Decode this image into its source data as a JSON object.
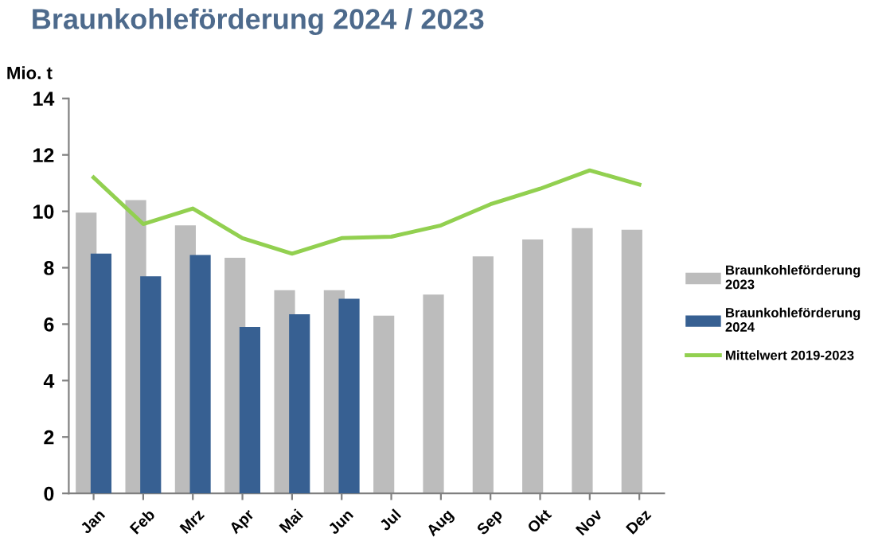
{
  "chart_data": {
    "type": "bar",
    "title": "Braunkohleförderung 2024 / 2023",
    "ylabel": "Mio. t",
    "categories": [
      "Jan",
      "Feb",
      "Mrz",
      "Apr",
      "Mai",
      "Jun",
      "Jul",
      "Aug",
      "Sep",
      "Okt",
      "Nov",
      "Dez"
    ],
    "series": [
      {
        "name": "Braunkohleförderung 2023",
        "color": "#bcbcbc",
        "values": [
          9.95,
          10.4,
          9.5,
          8.35,
          7.2,
          7.2,
          6.3,
          7.05,
          8.4,
          9.0,
          9.4,
          9.35
        ]
      },
      {
        "name": "Braunkohleförderung 2024",
        "color": "#376092",
        "values": [
          8.5,
          7.7,
          8.45,
          5.9,
          6.35,
          6.9,
          null,
          null,
          null,
          null,
          null,
          null
        ]
      },
      {
        "name": "Mittelwert 2019-2023",
        "type": "line",
        "color": "#92d050",
        "values": [
          11.2,
          9.55,
          10.1,
          9.05,
          8.5,
          9.05,
          9.1,
          9.5,
          10.25,
          10.8,
          11.45,
          10.95
        ]
      }
    ],
    "ylim": [
      0,
      14
    ],
    "yticks": [
      0,
      2,
      4,
      6,
      8,
      10,
      12,
      14
    ],
    "grid": false,
    "legend": "right",
    "marker": "none",
    "line_style": "solid"
  }
}
